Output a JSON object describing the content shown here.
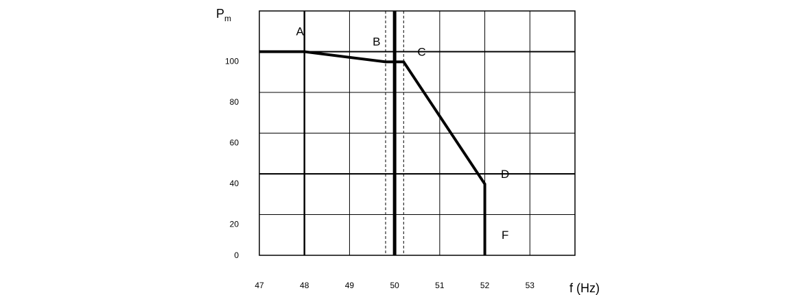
{
  "chart_data": {
    "type": "line",
    "title": "",
    "xlabel": "f (Hz)",
    "ylabel": "P",
    "ylabel_subscript": "m",
    "xlim": [
      47,
      54
    ],
    "ylim": [
      0,
      120
    ],
    "x_ticks": [
      47,
      48,
      49,
      50,
      51,
      52,
      53
    ],
    "y_ticks": [
      0,
      20,
      40,
      60,
      80,
      100
    ],
    "grid": true,
    "series": [
      {
        "points": [
          {
            "x": 47.0,
            "y": 100
          },
          {
            "x": 48.0,
            "y": 100
          },
          {
            "x": 49.8,
            "y": 95
          },
          {
            "x": 50.2,
            "y": 95
          },
          {
            "x": 52.0,
            "y": 35
          },
          {
            "x": 52.0,
            "y": 0
          }
        ],
        "color": "#000000"
      }
    ],
    "vertical_lines": [
      {
        "x": 50.0,
        "style": "solid-thick"
      },
      {
        "x": 49.8,
        "style": "dashed"
      },
      {
        "x": 50.2,
        "style": "dashed"
      }
    ],
    "point_labels": [
      {
        "text": "A",
        "x": 47.9,
        "y": 108
      },
      {
        "text": "B",
        "x": 49.6,
        "y": 103
      },
      {
        "text": "C",
        "x": 50.6,
        "y": 98
      },
      {
        "text": "D",
        "x": 52.45,
        "y": 38
      },
      {
        "text": "F",
        "x": 52.45,
        "y": 8
      }
    ]
  }
}
